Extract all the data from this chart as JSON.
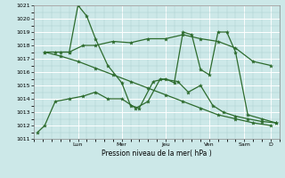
{
  "bg_color": "#cce8e8",
  "line_color": "#2d6b2d",
  "xlabel": "Pression niveau de la mer( hPa )",
  "ylim": [
    1011,
    1021
  ],
  "xlim": [
    0,
    14
  ],
  "day_positions": [
    2.5,
    5.0,
    7.5,
    10.0,
    12.0,
    13.5
  ],
  "day_labels": [
    "Lun",
    "Mer",
    "Jeu",
    "Ven",
    "Sam",
    "D"
  ],
  "line1_x": [
    0.2,
    0.6,
    1.2,
    2.0,
    2.8,
    3.5,
    4.2,
    5.0,
    5.8,
    6.5,
    7.2,
    8.2,
    8.8,
    9.5,
    10.2,
    10.8,
    11.5,
    12.2,
    13.0,
    13.8
  ],
  "line1_y": [
    1011.5,
    1012.0,
    1013.8,
    1014.0,
    1014.2,
    1014.5,
    1014.0,
    1014.0,
    1013.3,
    1013.8,
    1015.5,
    1015.3,
    1014.5,
    1015.0,
    1013.5,
    1013.0,
    1012.7,
    1012.5,
    1012.3,
    1012.2
  ],
  "line2_x": [
    0.6,
    1.2,
    2.0,
    2.8,
    3.5,
    4.5,
    5.5,
    6.5,
    7.5,
    8.5,
    9.5,
    10.5,
    11.5,
    12.5,
    13.5
  ],
  "line2_y": [
    1017.5,
    1017.5,
    1017.5,
    1018.0,
    1018.0,
    1018.3,
    1018.2,
    1018.5,
    1018.5,
    1018.8,
    1018.5,
    1018.3,
    1017.8,
    1016.8,
    1016.5
  ],
  "line3_x": [
    0.6,
    1.5,
    2.5,
    3.5,
    4.5,
    5.5,
    6.5,
    7.5,
    8.5,
    9.5,
    10.5,
    11.5,
    12.5,
    13.5
  ],
  "line3_y": [
    1017.5,
    1017.2,
    1016.8,
    1016.3,
    1015.8,
    1015.3,
    1014.8,
    1014.3,
    1013.8,
    1013.3,
    1012.8,
    1012.5,
    1012.2,
    1012.0
  ],
  "line4_x": [
    1.5,
    2.0,
    2.5,
    3.0,
    3.5,
    4.2,
    5.0,
    5.5,
    6.0,
    6.8,
    7.5,
    8.0,
    8.5,
    9.0,
    9.5,
    10.0,
    10.5,
    11.0,
    11.5,
    12.2,
    13.0,
    13.8
  ],
  "line4_y": [
    1017.5,
    1017.5,
    1021.0,
    1020.2,
    1018.5,
    1016.5,
    1015.2,
    1013.5,
    1013.3,
    1015.3,
    1015.5,
    1015.2,
    1019.0,
    1018.8,
    1016.2,
    1015.8,
    1019.0,
    1019.0,
    1017.5,
    1012.8,
    1012.5,
    1012.2
  ]
}
